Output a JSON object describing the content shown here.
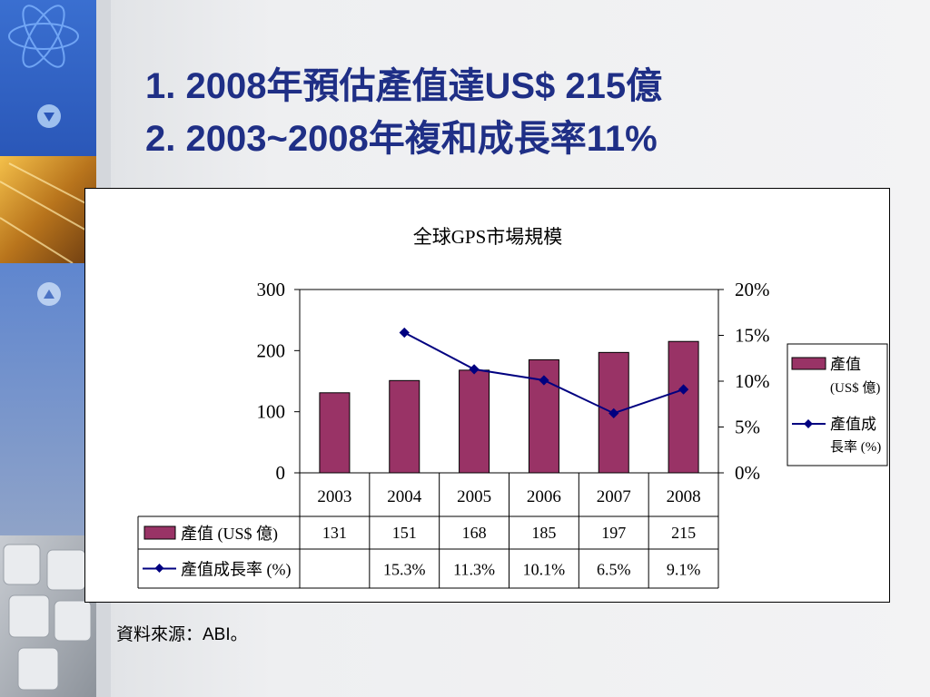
{
  "slide": {
    "title_line1": "1. 2008年預估產值達US$ 215億",
    "title_line2": "2. 2003~2008年複和成長率11%",
    "source": "資料來源：ABI。"
  },
  "colors": {
    "bar": "#993366",
    "line": "#000080",
    "title": "#1f2f86"
  },
  "chart_data": {
    "type": "bar",
    "title": "全球GPS市場規模",
    "categories": [
      "2003",
      "2004",
      "2005",
      "2006",
      "2007",
      "2008"
    ],
    "series": [
      {
        "name": "產值 (US$ 億)",
        "type": "bar",
        "axis": "left",
        "values": [
          131,
          151,
          168,
          185,
          197,
          215
        ],
        "labels": [
          "131",
          "151",
          "168",
          "185",
          "197",
          "215"
        ]
      },
      {
        "name": "產值成長率 (%)",
        "type": "line",
        "axis": "right",
        "values": [
          null,
          15.3,
          11.3,
          10.1,
          6.5,
          9.1
        ],
        "labels": [
          "",
          "15.3%",
          "11.3%",
          "10.1%",
          "6.5%",
          "9.1%"
        ]
      }
    ],
    "ylim_left": [
      0,
      300
    ],
    "yticks_left": [
      "0",
      "100",
      "200",
      "300"
    ],
    "ylim_right": [
      0,
      20
    ],
    "yticks_right": [
      "0%",
      "5%",
      "10%",
      "15%",
      "20%"
    ],
    "legend": {
      "position": "right",
      "bar_lines": [
        "產值",
        "(US$ 億)"
      ],
      "line_lines": [
        "產值成",
        "長率 (%)"
      ]
    },
    "data_table": true,
    "grid": false
  }
}
